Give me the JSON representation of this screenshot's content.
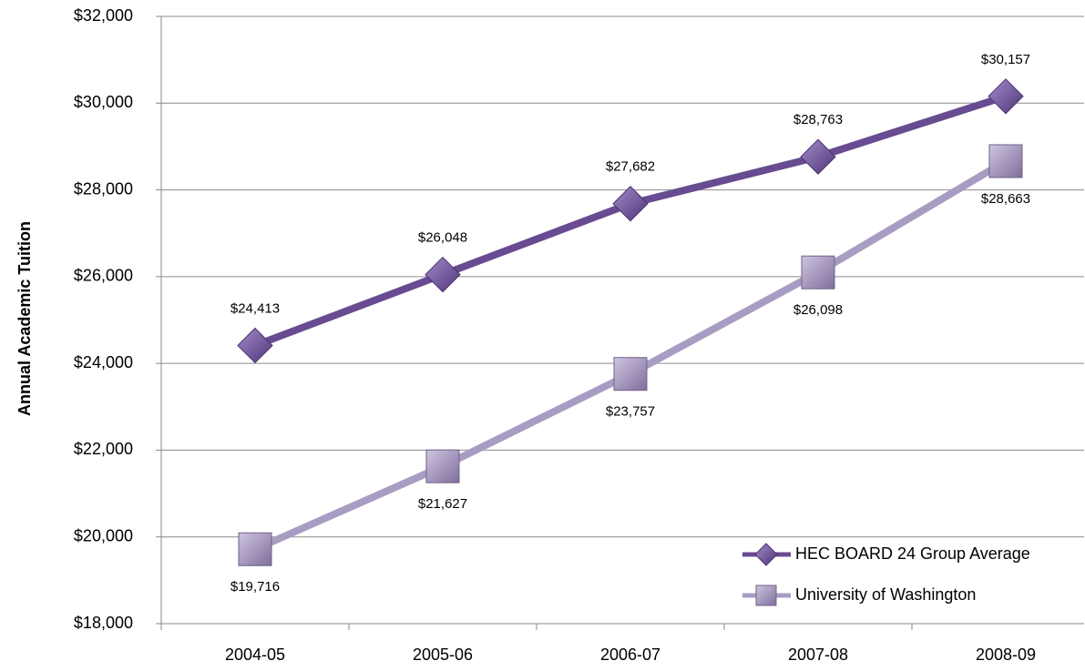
{
  "chart_data": {
    "type": "line",
    "y_label": "Annual Academic Tuition",
    "categories": [
      "2004-05",
      "2005-06",
      "2006-07",
      "2007-08",
      "2008-09"
    ],
    "series": [
      {
        "name": "HEC BOARD 24 Group Average",
        "color": "#684b91",
        "marker": "diamond",
        "values": [
          24413,
          26048,
          27682,
          28763,
          30157
        ],
        "value_labels": [
          "$24,413",
          "$26,048",
          "$27,682",
          "$28,763",
          "$30,157"
        ]
      },
      {
        "name": "University of Washington",
        "color": "#a99cc2",
        "marker": "square",
        "values": [
          19716,
          21627,
          23757,
          26098,
          28663
        ],
        "value_labels": [
          "$19,716",
          "$21,627",
          "$23,757",
          "$26,098",
          "$28,663"
        ]
      }
    ],
    "ylim": [
      18000,
      32000
    ],
    "yticks": [
      {
        "value": 18000,
        "label": "$18,000"
      },
      {
        "value": 20000,
        "label": "$20,000"
      },
      {
        "value": 22000,
        "label": "$22,000"
      },
      {
        "value": 24000,
        "label": "$24,000"
      },
      {
        "value": 26000,
        "label": "$26,000"
      },
      {
        "value": 28000,
        "label": "$28,000"
      },
      {
        "value": 30000,
        "label": "$30,000"
      },
      {
        "value": 32000,
        "label": "$32,000"
      }
    ],
    "grid": true,
    "legend": "lower right"
  }
}
